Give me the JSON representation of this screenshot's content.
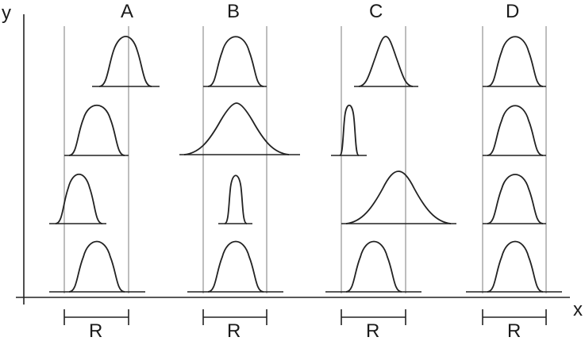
{
  "axis": {
    "y_label": "y",
    "x_label": "x"
  },
  "range_label": "R",
  "columns": [
    {
      "label": "A"
    },
    {
      "label": "B"
    },
    {
      "label": "C"
    },
    {
      "label": "D"
    }
  ]
}
